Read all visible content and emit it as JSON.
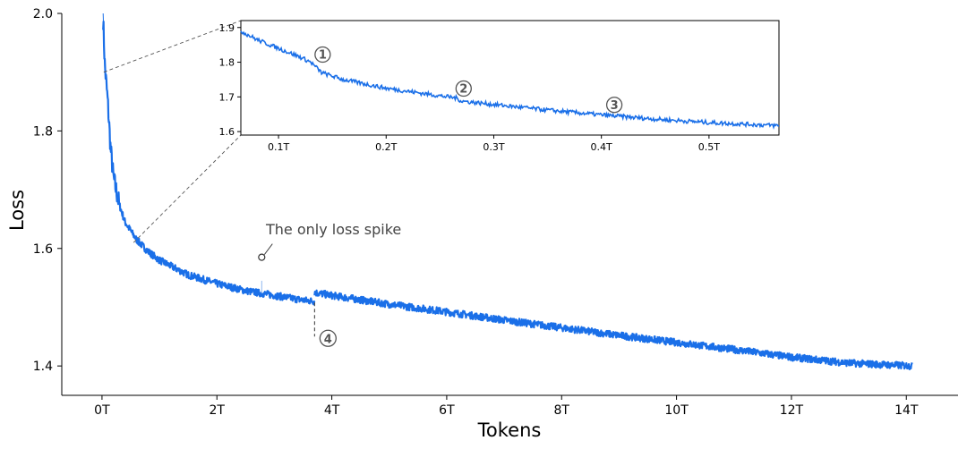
{
  "chart_data": [
    {
      "type": "line",
      "xlabel": "Tokens",
      "ylabel": "Loss",
      "xlim": [
        -0.7,
        14.9
      ],
      "ylim": [
        1.35,
        2.0
      ],
      "x_ticks": [
        {
          "v": 0,
          "label": "0T"
        },
        {
          "v": 2,
          "label": "2T"
        },
        {
          "v": 4,
          "label": "4T"
        },
        {
          "v": 6,
          "label": "6T"
        },
        {
          "v": 8,
          "label": "8T"
        },
        {
          "v": 10,
          "label": "10T"
        },
        {
          "v": 12,
          "label": "12T"
        },
        {
          "v": 14,
          "label": "14T"
        }
      ],
      "y_ticks": [
        {
          "v": 1.4,
          "label": "1.4"
        },
        {
          "v": 1.6,
          "label": "1.6"
        },
        {
          "v": 1.8,
          "label": "1.8"
        },
        {
          "v": 2.0,
          "label": "2.0"
        }
      ],
      "series": [
        {
          "color": "#1a6fe8",
          "x_unit": "T tokens",
          "x": [
            0.02,
            0.05,
            0.1,
            0.15,
            0.2,
            0.3,
            0.4,
            0.5,
            0.6,
            0.8,
            1.0,
            1.5,
            2.0,
            2.5,
            3.0,
            3.5,
            3.7
          ],
          "y": [
            1.99,
            1.91,
            1.85,
            1.77,
            1.72,
            1.675,
            1.645,
            1.63,
            1.615,
            1.595,
            1.58,
            1.555,
            1.54,
            1.528,
            1.52,
            1.512,
            1.51
          ]
        },
        {
          "color": "#1a6fe8",
          "x_unit": "T tokens",
          "x": [
            3.7,
            4.0,
            5.0,
            6.0,
            7.0,
            8.0,
            9.0,
            10.0,
            11.0,
            12.0,
            13.0,
            14.1
          ],
          "y": [
            1.525,
            1.52,
            1.505,
            1.492,
            1.478,
            1.465,
            1.452,
            1.44,
            1.428,
            1.415,
            1.405,
            1.4
          ]
        }
      ],
      "spike": {
        "x": 2.78,
        "y": 1.585
      },
      "drop_marker": {
        "x": 3.7,
        "label": "④"
      },
      "annotations": [
        {
          "text": "The only loss spike"
        }
      ]
    },
    {
      "type": "line",
      "role": "inset",
      "xlim": [
        0.065,
        0.565
      ],
      "ylim": [
        1.59,
        1.92
      ],
      "x_ticks": [
        {
          "v": 0.1,
          "label": "0.1T"
        },
        {
          "v": 0.2,
          "label": "0.2T"
        },
        {
          "v": 0.3,
          "label": "0.3T"
        },
        {
          "v": 0.4,
          "label": "0.4T"
        },
        {
          "v": 0.5,
          "label": "0.5T"
        }
      ],
      "y_ticks": [
        {
          "v": 1.6,
          "label": "1.6"
        },
        {
          "v": 1.7,
          "label": "1.7"
        },
        {
          "v": 1.8,
          "label": "1.8"
        },
        {
          "v": 1.9,
          "label": "1.9"
        }
      ],
      "series": [
        {
          "color": "#1a6fe8",
          "x_unit": "T tokens",
          "x": [
            0.065,
            0.08,
            0.1,
            0.12,
            0.13,
            0.135,
            0.14,
            0.16,
            0.2,
            0.25,
            0.265,
            0.27,
            0.3,
            0.35,
            0.4,
            0.45,
            0.5,
            0.565
          ],
          "y": [
            1.89,
            1.865,
            1.84,
            1.815,
            1.8,
            1.785,
            1.77,
            1.75,
            1.725,
            1.703,
            1.697,
            1.688,
            1.678,
            1.662,
            1.648,
            1.636,
            1.626,
            1.617
          ]
        }
      ],
      "markers": [
        {
          "x": 0.141,
          "y": 1.822,
          "label": "①"
        },
        {
          "x": 0.272,
          "y": 1.724,
          "label": "②"
        },
        {
          "x": 0.412,
          "y": 1.677,
          "label": "③"
        }
      ]
    }
  ]
}
